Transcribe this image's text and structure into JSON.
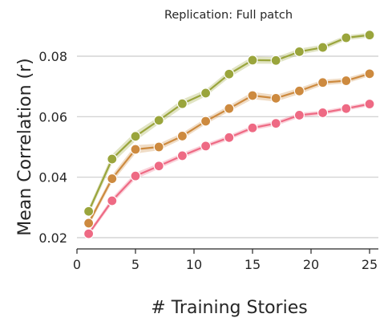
{
  "chart_data": {
    "type": "line",
    "title": "Replication: Full patch",
    "xlabel": "# Training Stories",
    "ylabel": "Mean Correlation (r)",
    "xlim": [
      0,
      26
    ],
    "ylim": [
      0.012,
      0.093
    ],
    "xticks": [
      0,
      5,
      10,
      15,
      20,
      25
    ],
    "xtick_labels": [
      "0",
      "5",
      "10",
      "15",
      "20",
      "25"
    ],
    "yticks": [
      0.02,
      0.04,
      0.06,
      0.08
    ],
    "ytick_labels": [
      "0.02",
      "0.04",
      "0.06",
      "0.08"
    ],
    "grid": "horizontal",
    "legend": "none",
    "x": [
      1,
      3,
      5,
      7,
      9,
      11,
      13,
      15,
      17,
      19,
      21,
      23,
      25
    ],
    "series": [
      {
        "color": "#9aa53c",
        "values": [
          0.0287,
          0.046,
          0.0535,
          0.0588,
          0.0643,
          0.0678,
          0.0741,
          0.0787,
          0.0786,
          0.0815,
          0.0829,
          0.0861,
          0.087
        ],
        "band": [
          0.0012,
          0.0015,
          0.0015,
          0.0012,
          0.0014,
          0.0011,
          0.0012,
          0.0012,
          0.0011,
          0.001,
          0.0009,
          0.0008,
          0.0008
        ]
      },
      {
        "color": "#cd8a3f",
        "values": [
          0.0248,
          0.0395,
          0.0492,
          0.05,
          0.0536,
          0.0585,
          0.0627,
          0.067,
          0.0661,
          0.0685,
          0.0713,
          0.0719,
          0.0742
        ],
        "band": [
          0.001,
          0.0012,
          0.0014,
          0.0011,
          0.001,
          0.001,
          0.001,
          0.0012,
          0.0011,
          0.001,
          0.0009,
          0.0009,
          0.0008
        ]
      },
      {
        "color": "#ee6a84",
        "values": [
          0.0213,
          0.0322,
          0.0404,
          0.0437,
          0.0471,
          0.0503,
          0.0531,
          0.0563,
          0.0578,
          0.0605,
          0.0613,
          0.0627,
          0.0642
        ],
        "band": [
          0.0008,
          0.001,
          0.0011,
          0.0009,
          0.0009,
          0.0008,
          0.0008,
          0.0008,
          0.0008,
          0.0008,
          0.0007,
          0.0007,
          0.0007
        ]
      }
    ]
  }
}
